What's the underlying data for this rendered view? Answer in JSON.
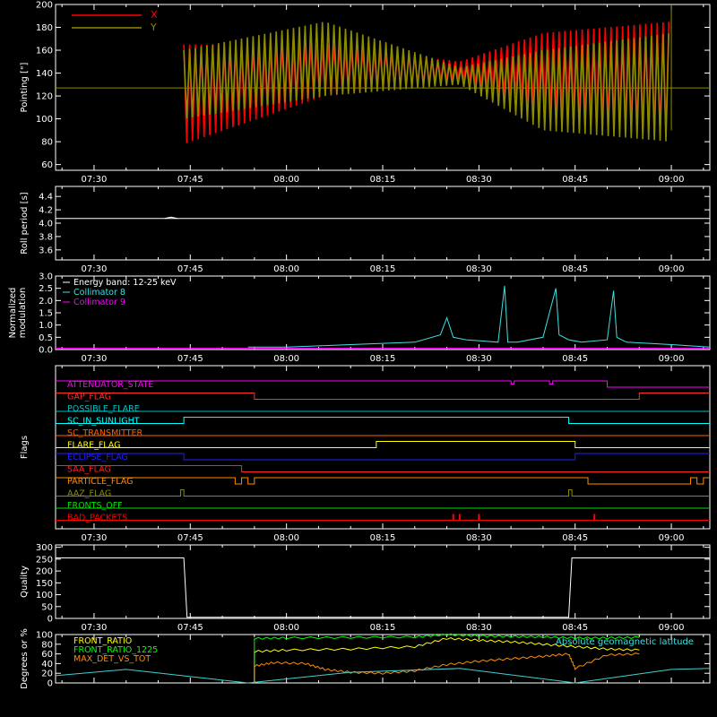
{
  "colors": {
    "background": "#000000",
    "axes": "#ffffff",
    "x_red": "#ff0000",
    "y_olive": "#8c8c00",
    "cyan": "#40e0e0",
    "magenta": "#ff00ff",
    "yellow": "#ffff00",
    "green": "#00ff00",
    "orange": "#ff8c00",
    "blue": "#0000ff",
    "red_dark": "#e03030"
  },
  "time_ticks": [
    "07:30",
    "07:45",
    "08:00",
    "08:15",
    "08:30",
    "08:45",
    "09:00"
  ],
  "chart_data": [
    {
      "id": "pointing",
      "type": "line",
      "ylabel": "Pointing [\"]",
      "ylim": [
        55,
        200
      ],
      "yticks": [
        "60",
        "80",
        "100",
        "120",
        "140",
        "160",
        "180",
        "200"
      ],
      "ytick_values": [
        60,
        80,
        100,
        120,
        140,
        160,
        180,
        200
      ],
      "xlim_minutes": [
        -6,
        96
      ],
      "legend": [
        "X",
        "Y"
      ],
      "baseline": 127,
      "series": [
        {
          "name": "X",
          "color": "#ff0000",
          "segments_x": [
            14,
            36,
            57,
            70,
            90
          ],
          "envelope_high": [
            165,
            165,
            150,
            175,
            185
          ],
          "envelope_low": [
            78,
            120,
            135,
            110,
            85
          ]
        },
        {
          "name": "Y",
          "color": "#8c8c00",
          "segments_x": [
            14,
            36,
            57,
            70,
            90
          ],
          "envelope_high": [
            160,
            185,
            145,
            160,
            175
          ],
          "envelope_low": [
            100,
            120,
            130,
            90,
            80
          ]
        }
      ]
    },
    {
      "id": "roll",
      "type": "line",
      "ylabel": "Roll period [s]",
      "ylim": [
        3.45,
        4.55
      ],
      "yticks": [
        "3.6",
        "3.8",
        "4.0",
        "4.2",
        "4.4"
      ],
      "ytick_values": [
        3.6,
        3.8,
        4.0,
        4.2,
        4.4
      ],
      "value": 4.07
    },
    {
      "id": "modulation",
      "type": "line",
      "ylabel": [
        "Normalized",
        "modulation"
      ],
      "ylim": [
        0,
        3.0
      ],
      "yticks": [
        "0.0",
        "0.5",
        "1.0",
        "1.5",
        "2.0",
        "2.5",
        "3.0"
      ],
      "ytick_values": [
        0,
        0.5,
        1.0,
        1.5,
        2.0,
        2.5,
        3.0
      ],
      "legend_lines": [
        "Energy band: 12-25 keV",
        "Collimator 8",
        "Collimator 9"
      ],
      "legend_colors": [
        "#ffffff",
        "#40e0e0",
        "#ff00ff"
      ],
      "collimator8": {
        "x": [
          24,
          30,
          40,
          50,
          54,
          55,
          56,
          58,
          63,
          64,
          64.5,
          66,
          70,
          72,
          72.5,
          74,
          76,
          80,
          81,
          81.5,
          83,
          90,
          96
        ],
        "y": [
          0.1,
          0.1,
          0.2,
          0.3,
          0.6,
          1.3,
          0.5,
          0.4,
          0.3,
          2.6,
          0.3,
          0.3,
          0.5,
          2.5,
          0.6,
          0.4,
          0.3,
          0.4,
          2.4,
          0.5,
          0.3,
          0.2,
          0.1
        ]
      },
      "collimator9": {
        "x": [
          -6,
          96
        ],
        "y": [
          0.05,
          0.05
        ]
      }
    },
    {
      "id": "flags",
      "type": "table",
      "ylabel": "Flags",
      "flags": [
        {
          "name": "ATTENUATOR_STATE",
          "color": "#ff00ff",
          "steps": [
            [
              55,
              1
            ],
            [
              65,
              0.5
            ],
            [
              65.5,
              1
            ],
            [
              71,
              0.5
            ],
            [
              71.5,
              1
            ],
            [
              80,
              0
            ]
          ]
        },
        {
          "name": "GAP_FLAG",
          "color": "#ff3030",
          "steps": [
            [
              -6,
              1
            ],
            [
              25,
              0
            ],
            [
              85,
              1
            ]
          ]
        },
        {
          "name": "POSSIBLE_FLARE",
          "color": "#00c0c0",
          "steps": []
        },
        {
          "name": "SC_IN_SUNLIGHT",
          "color": "#00ffff",
          "steps": [
            [
              -6,
              0
            ],
            [
              14,
              1
            ],
            [
              74,
              0
            ]
          ]
        },
        {
          "name": "SC_TRANSMITTER",
          "color": "#ff6000",
          "steps": []
        },
        {
          "name": "FLARE_FLAG",
          "color": "#ffff00",
          "steps": [
            [
              -6,
              0
            ],
            [
              44,
              1
            ],
            [
              75,
              0
            ]
          ]
        },
        {
          "name": "ECLIPSE_FLAG",
          "color": "#2020ff",
          "steps": [
            [
              -6,
              1
            ],
            [
              14,
              0
            ],
            [
              75,
              1
            ]
          ]
        },
        {
          "name": "SAA_FLAG",
          "color": "#ff2020",
          "steps": [
            [
              -6,
              1
            ],
            [
              23,
              0
            ]
          ]
        },
        {
          "name": "PARTICLE_FLAG",
          "color": "#ff8c00",
          "steps": [
            [
              -6,
              1
            ],
            [
              22,
              0
            ],
            [
              23,
              1
            ],
            [
              24,
              0
            ],
            [
              25,
              1
            ],
            [
              77,
              0
            ],
            [
              93,
              1
            ],
            [
              94,
              0
            ],
            [
              95,
              1
            ]
          ]
        },
        {
          "name": "AAZ_FLAG",
          "color": "#8c8c00",
          "steps": [
            [
              -6,
              0
            ],
            [
              13.5,
              1
            ],
            [
              14,
              0
            ],
            [
              74,
              1
            ],
            [
              74.5,
              0
            ]
          ]
        },
        {
          "name": "FRONTS_OFF",
          "color": "#00e000",
          "steps": []
        },
        {
          "name": "BAD_PACKETS",
          "color": "#ff0000",
          "spikes": [
            56,
            57,
            60,
            78
          ]
        }
      ]
    },
    {
      "id": "quality",
      "type": "line",
      "ylabel": "Quality",
      "ylim": [
        0,
        310
      ],
      "yticks": [
        "0",
        "50",
        "100",
        "150",
        "200",
        "250",
        "300"
      ],
      "ytick_values": [
        0,
        50,
        100,
        150,
        200,
        250,
        300
      ],
      "x": [
        -6,
        14,
        14.5,
        74,
        74.5,
        96
      ],
      "y": [
        255,
        255,
        5,
        5,
        255,
        255
      ]
    },
    {
      "id": "ratios",
      "type": "line",
      "ylabel": "Degrees or %",
      "ylim": [
        0,
        100
      ],
      "yticks": [
        "0",
        "20",
        "40",
        "60",
        "80",
        "100"
      ],
      "ytick_values": [
        0,
        20,
        40,
        60,
        80,
        100
      ],
      "legend": [
        "FRONT_RATIO",
        "FRONT_RATIO_1225",
        "MAX_DET_VS_TOT"
      ],
      "legend_colors": [
        "#ffff00",
        "#00ff00",
        "#ff8c00"
      ],
      "right_label": "Absolute geomagnetic latitude",
      "series": [
        {
          "name": "FRONT_RATIO",
          "color": "#ffff00",
          "x": [
            25,
            30,
            40,
            50,
            55,
            60,
            65,
            70,
            75,
            80,
            85
          ],
          "y": [
            65,
            68,
            70,
            75,
            92,
            88,
            85,
            80,
            75,
            70,
            68
          ]
        },
        {
          "name": "FRONT_RATIO_1225",
          "color": "#00ff00",
          "x": [
            25,
            30,
            40,
            50,
            55,
            60,
            65,
            70,
            75,
            80,
            85
          ],
          "y": [
            92,
            93,
            94,
            95,
            100,
            97,
            96,
            95,
            93,
            93,
            94
          ]
        },
        {
          "name": "MAX_DET_VS_TOT",
          "color": "#ff8c00",
          "x": [
            25,
            28,
            33,
            36,
            40,
            45,
            50,
            55,
            60,
            65,
            70,
            74,
            75,
            80,
            85
          ],
          "y": [
            35,
            42,
            40,
            28,
            22,
            20,
            25,
            38,
            45,
            50,
            55,
            60,
            30,
            58,
            60
          ]
        },
        {
          "name": "Absolute geomagnetic latitude",
          "color": "#40d0d0",
          "x": [
            -6,
            5,
            24,
            40,
            57,
            75,
            90,
            96
          ],
          "y": [
            15,
            28,
            0,
            22,
            30,
            0,
            28,
            30
          ]
        }
      ]
    }
  ]
}
